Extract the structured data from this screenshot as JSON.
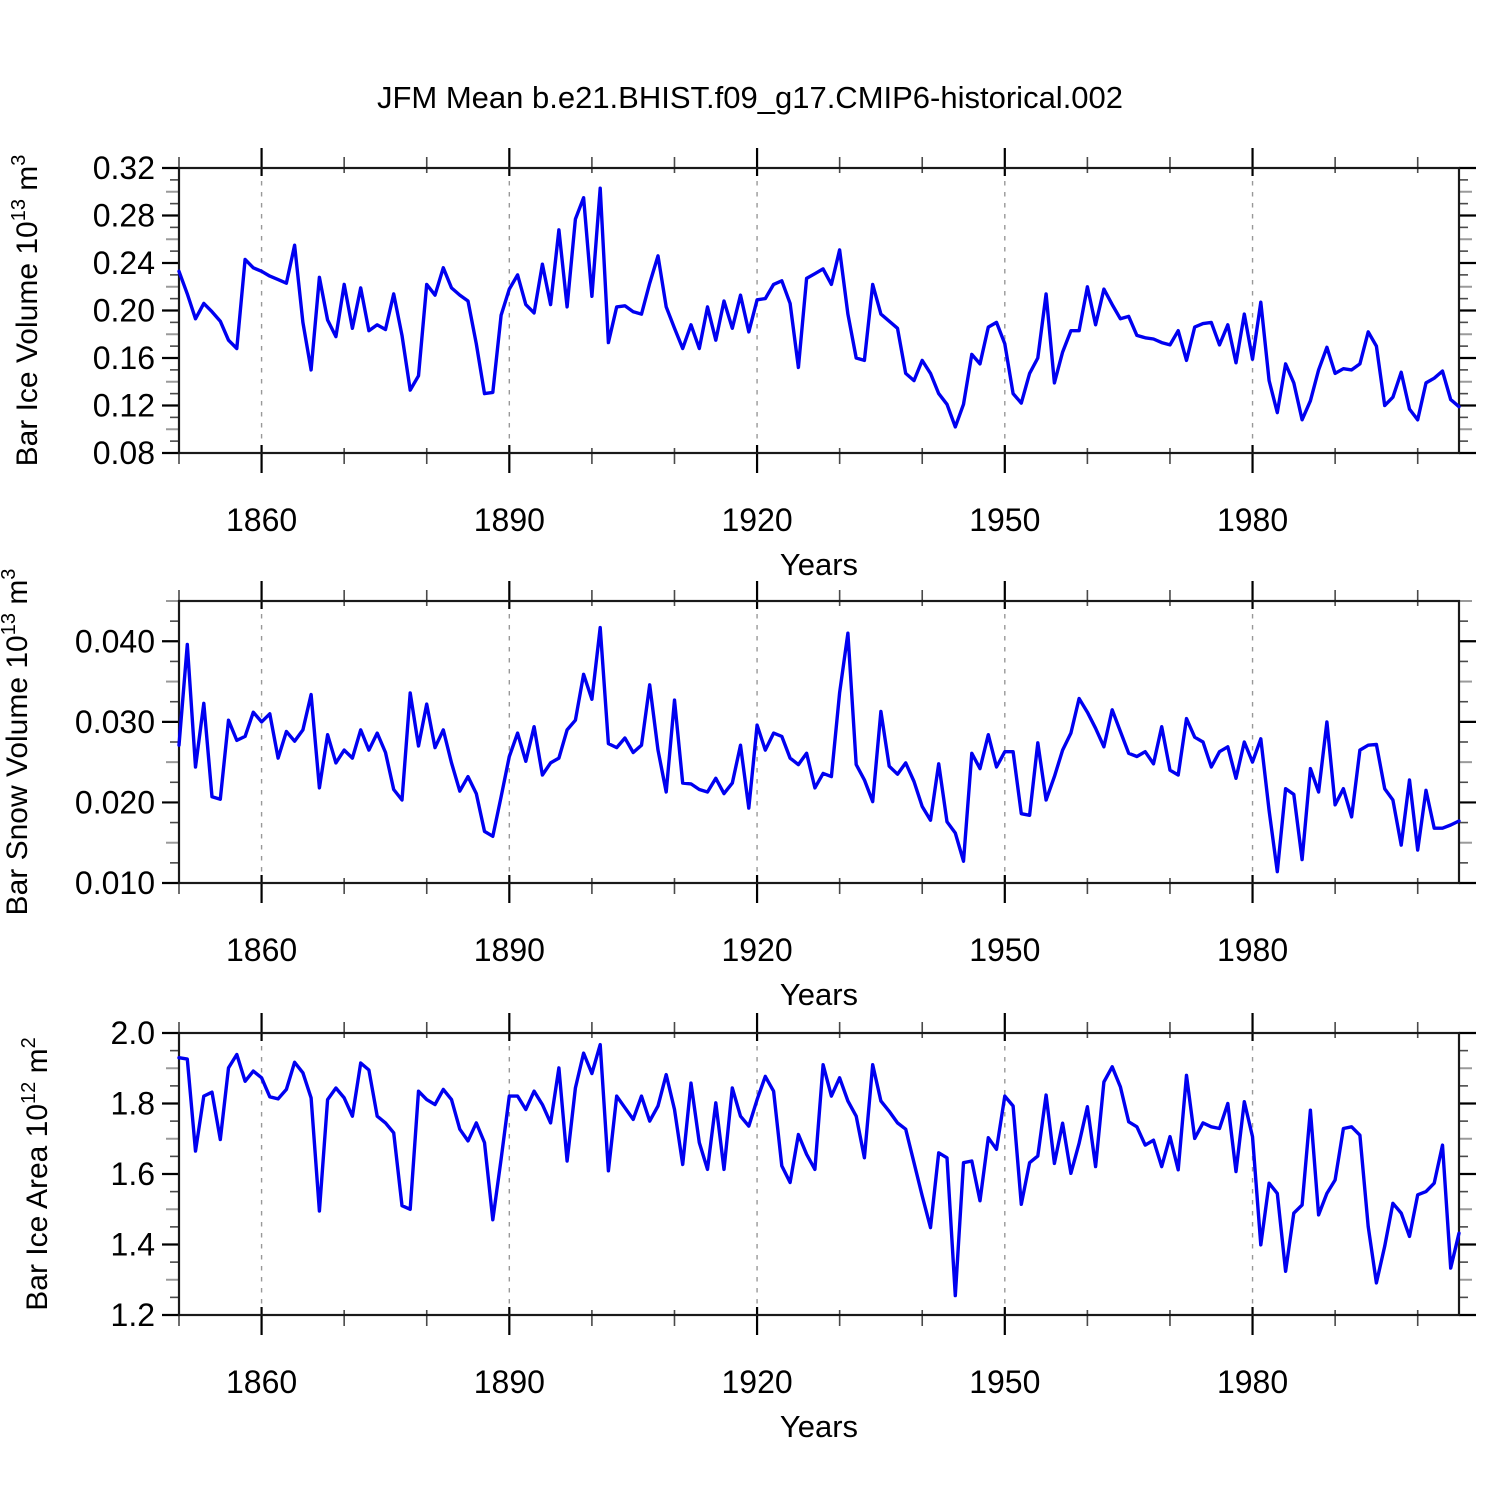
{
  "title": "JFM Mean b.e21.BHIST.f09_g17.CMIP6-historical.002",
  "colors": {
    "line": "#0000f0",
    "axis": "#1a1a1a",
    "major_tick": "#000000",
    "minor_tick": "#4a4a4a",
    "mid_minor_tick": "#9a9a9a",
    "grid": "#989898",
    "text": "#000000",
    "background": "#ffffff"
  },
  "x_axis": {
    "label": "Years",
    "min": 1850,
    "max": 2005,
    "major_ticks": [
      1860,
      1890,
      1920,
      1950,
      1980
    ],
    "minor_step": 10
  },
  "chart_data": [
    {
      "type": "line",
      "name": "bar-ice-volume",
      "ylabel_parts": [
        {
          "t": "Bar Ice Volume 10"
        },
        {
          "t": "13",
          "sup": true
        },
        {
          "t": " m"
        },
        {
          "t": "3",
          "sup": true
        }
      ],
      "xlabel": "Years",
      "ylim": [
        0.08,
        0.32
      ],
      "ymajor_step": 0.04,
      "yminor_step": 0.01,
      "ydecimals": 2,
      "x0": 1850,
      "dx": 1,
      "values": [
        0.233,
        0.214,
        0.193,
        0.206,
        0.199,
        0.191,
        0.175,
        0.168,
        0.243,
        0.236,
        0.233,
        0.229,
        0.226,
        0.223,
        0.255,
        0.19,
        0.15,
        0.228,
        0.192,
        0.178,
        0.222,
        0.185,
        0.219,
        0.183,
        0.188,
        0.184,
        0.214,
        0.179,
        0.133,
        0.145,
        0.222,
        0.213,
        0.236,
        0.219,
        0.213,
        0.208,
        0.172,
        0.13,
        0.131,
        0.196,
        0.218,
        0.23,
        0.205,
        0.198,
        0.239,
        0.205,
        0.268,
        0.203,
        0.277,
        0.295,
        0.212,
        0.303,
        0.173,
        0.203,
        0.204,
        0.199,
        0.197,
        0.223,
        0.246,
        0.203,
        0.185,
        0.168,
        0.188,
        0.168,
        0.203,
        0.175,
        0.208,
        0.185,
        0.213,
        0.182,
        0.209,
        0.21,
        0.222,
        0.225,
        0.206,
        0.152,
        0.227,
        0.231,
        0.235,
        0.222,
        0.251,
        0.197,
        0.16,
        0.158,
        0.222,
        0.197,
        0.191,
        0.185,
        0.147,
        0.141,
        0.158,
        0.147,
        0.13,
        0.121,
        0.102,
        0.121,
        0.163,
        0.155,
        0.186,
        0.19,
        0.172,
        0.13,
        0.122,
        0.147,
        0.16,
        0.214,
        0.139,
        0.165,
        0.183,
        0.183,
        0.22,
        0.188,
        0.218,
        0.205,
        0.193,
        0.195,
        0.179,
        0.177,
        0.176,
        0.173,
        0.171,
        0.183,
        0.158,
        0.186,
        0.189,
        0.19,
        0.171,
        0.188,
        0.156,
        0.197,
        0.159,
        0.207,
        0.141,
        0.114,
        0.155,
        0.139,
        0.108,
        0.124,
        0.15,
        0.169,
        0.147,
        0.151,
        0.15,
        0.155,
        0.182,
        0.17,
        0.12,
        0.127,
        0.148,
        0.117,
        0.108,
        0.139,
        0.143,
        0.149,
        0.125,
        0.119
      ]
    },
    {
      "type": "line",
      "name": "bar-snow-volume",
      "ylabel_parts": [
        {
          "t": "Bar Snow Volume 10"
        },
        {
          "t": "13",
          "sup": true
        },
        {
          "t": " m"
        },
        {
          "t": "3",
          "sup": true
        }
      ],
      "xlabel": "Years",
      "ylim": [
        0.01,
        0.045
      ],
      "ymajor_step": 0.01,
      "yminor_step": 0.0025,
      "ydecimals": 3,
      "x0": 1850,
      "dx": 1,
      "values": [
        0.0271,
        0.0396,
        0.0244,
        0.0323,
        0.0207,
        0.0204,
        0.0302,
        0.0277,
        0.0282,
        0.0312,
        0.03,
        0.031,
        0.0255,
        0.0288,
        0.0276,
        0.029,
        0.0334,
        0.0218,
        0.0284,
        0.0249,
        0.0265,
        0.0255,
        0.029,
        0.0265,
        0.0286,
        0.0262,
        0.0216,
        0.0203,
        0.0336,
        0.027,
        0.0322,
        0.0268,
        0.029,
        0.0249,
        0.0214,
        0.0232,
        0.0211,
        0.0164,
        0.0158,
        0.0207,
        0.0257,
        0.0286,
        0.0251,
        0.0294,
        0.0234,
        0.0249,
        0.0255,
        0.029,
        0.0302,
        0.0359,
        0.0328,
        0.0417,
        0.0273,
        0.0268,
        0.028,
        0.0262,
        0.0271,
        0.0346,
        0.0265,
        0.0213,
        0.0327,
        0.0224,
        0.0223,
        0.0216,
        0.0213,
        0.023,
        0.0211,
        0.0224,
        0.0271,
        0.0193,
        0.0296,
        0.0265,
        0.0286,
        0.0282,
        0.0255,
        0.0247,
        0.0261,
        0.0218,
        0.0236,
        0.0232,
        0.0336,
        0.041,
        0.0247,
        0.0228,
        0.0201,
        0.0313,
        0.0245,
        0.0235,
        0.0249,
        0.0226,
        0.0195,
        0.0178,
        0.0248,
        0.0176,
        0.0162,
        0.0127,
        0.0261,
        0.0242,
        0.0284,
        0.0244,
        0.0263,
        0.0263,
        0.0186,
        0.0184,
        0.0274,
        0.0203,
        0.0232,
        0.0265,
        0.0286,
        0.0329,
        0.0312,
        0.0292,
        0.0269,
        0.0315,
        0.0288,
        0.0261,
        0.0257,
        0.0263,
        0.0248,
        0.0294,
        0.024,
        0.0234,
        0.0304,
        0.0281,
        0.0275,
        0.0244,
        0.0263,
        0.0269,
        0.023,
        0.0275,
        0.025,
        0.0279,
        0.019,
        0.0114,
        0.0217,
        0.021,
        0.0129,
        0.0242,
        0.0213,
        0.03,
        0.0197,
        0.0217,
        0.0182,
        0.0265,
        0.0271,
        0.0272,
        0.0217,
        0.0203,
        0.0147,
        0.0228,
        0.0141,
        0.0215,
        0.0168,
        0.0168,
        0.0172,
        0.0177
      ]
    },
    {
      "type": "line",
      "name": "bar-ice-area",
      "ylabel_parts": [
        {
          "t": "Bar Ice Area 10"
        },
        {
          "t": "12",
          "sup": true
        },
        {
          "t": " m"
        },
        {
          "t": "2",
          "sup": true
        }
      ],
      "xlabel": "Years",
      "ylim": [
        1.2,
        2.0
      ],
      "ymajor_step": 0.2,
      "yminor_step": 0.05,
      "ydecimals": 1,
      "x0": 1850,
      "dx": 1,
      "values": [
        1.93,
        1.926,
        1.665,
        1.821,
        1.832,
        1.698,
        1.901,
        1.939,
        1.863,
        1.892,
        1.873,
        1.819,
        1.813,
        1.84,
        1.917,
        1.887,
        1.816,
        1.495,
        1.811,
        1.844,
        1.816,
        1.764,
        1.915,
        1.895,
        1.764,
        1.745,
        1.717,
        1.51,
        1.5,
        1.835,
        1.811,
        1.797,
        1.84,
        1.811,
        1.727,
        1.694,
        1.745,
        1.689,
        1.47,
        1.642,
        1.821,
        1.821,
        1.783,
        1.835,
        1.797,
        1.745,
        1.901,
        1.637,
        1.844,
        1.943,
        1.885,
        1.967,
        1.609,
        1.821,
        1.788,
        1.755,
        1.821,
        1.75,
        1.793,
        1.882,
        1.783,
        1.627,
        1.858,
        1.689,
        1.613,
        1.802,
        1.613,
        1.844,
        1.764,
        1.736,
        1.811,
        1.877,
        1.835,
        1.623,
        1.576,
        1.712,
        1.656,
        1.613,
        1.91,
        1.821,
        1.873,
        1.807,
        1.764,
        1.646,
        1.91,
        1.807,
        1.778,
        1.745,
        1.727,
        1.632,
        1.538,
        1.448,
        1.66,
        1.646,
        1.255,
        1.632,
        1.637,
        1.524,
        1.703,
        1.67,
        1.821,
        1.793,
        1.514,
        1.632,
        1.651,
        1.824,
        1.63,
        1.744,
        1.602,
        1.687,
        1.791,
        1.621,
        1.861,
        1.904,
        1.847,
        1.748,
        1.734,
        1.682,
        1.696,
        1.621,
        1.706,
        1.612,
        1.88,
        1.701,
        1.745,
        1.734,
        1.729,
        1.8,
        1.607,
        1.805,
        1.706,
        1.399,
        1.574,
        1.545,
        1.324,
        1.489,
        1.512,
        1.781,
        1.484,
        1.545,
        1.583,
        1.729,
        1.734,
        1.71,
        1.451,
        1.291,
        1.395,
        1.517,
        1.489,
        1.423,
        1.541,
        1.55,
        1.574,
        1.682,
        1.333,
        1.432
      ]
    }
  ]
}
